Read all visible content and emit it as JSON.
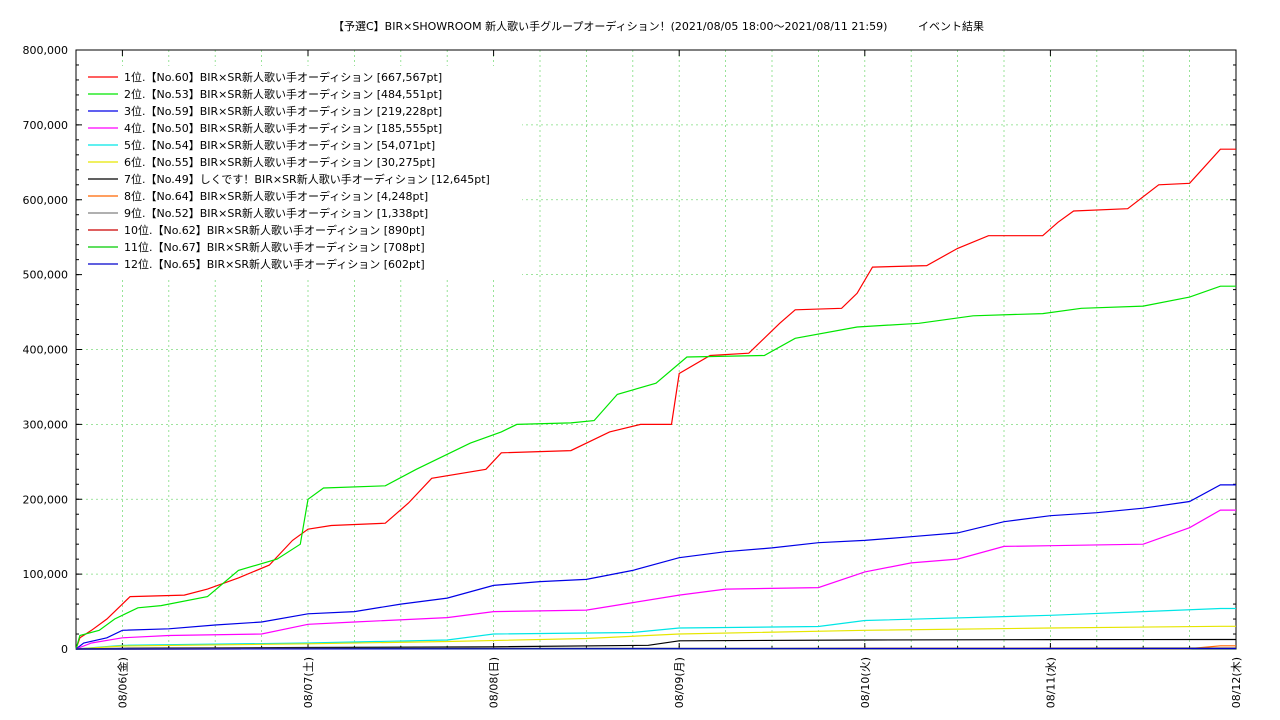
{
  "chart_data": {
    "type": "line",
    "title": "【予選C】BIR×SHOWROOM 新人歌い手グループオーディション！(2021/08/05 18:00〜2021/08/11 21:59)",
    "subtitle": "イベント結果",
    "xlabel": "",
    "ylabel": "",
    "ylim": [
      0,
      800000
    ],
    "xlim": [
      "2021-08-05 18:00",
      "2021-08-12 00:00"
    ],
    "y_ticks": [
      "0",
      "100,000",
      "200,000",
      "300,000",
      "400,000",
      "500,000",
      "600,000",
      "700,000",
      "800,000"
    ],
    "y_tick_values": [
      0,
      100000,
      200000,
      300000,
      400000,
      500000,
      600000,
      700000,
      800000
    ],
    "x_ticks": [
      "08/06(金)",
      "08/07(土)",
      "08/08(日)",
      "08/09(月)",
      "08/10(火)",
      "08/11(水)",
      "08/12(木)"
    ],
    "x_tick_values": [
      "2021-08-06 00:00",
      "2021-08-07 00:00",
      "2021-08-08 00:00",
      "2021-08-09 00:00",
      "2021-08-10 00:00",
      "2021-08-11 00:00",
      "2021-08-12 00:00"
    ],
    "grid": true,
    "legend_position": "top-left",
    "series": [
      {
        "name": "1位.【No.60】BIR×SR新人歌い手オーディション [667,567pt]",
        "color": "#ff0000",
        "points": [
          [
            "2021-08-05 18:00",
            0
          ],
          [
            "2021-08-05 18:30",
            15000
          ],
          [
            "2021-08-05 20:00",
            25000
          ],
          [
            "2021-08-05 22:00",
            40000
          ],
          [
            "2021-08-06 00:00",
            60000
          ],
          [
            "2021-08-06 01:00",
            70000
          ],
          [
            "2021-08-06 08:00",
            72000
          ],
          [
            "2021-08-06 11:00",
            80000
          ],
          [
            "2021-08-06 15:00",
            95000
          ],
          [
            "2021-08-06 19:00",
            112000
          ],
          [
            "2021-08-06 22:00",
            145000
          ],
          [
            "2021-08-07 00:00",
            160000
          ],
          [
            "2021-08-07 03:00",
            165000
          ],
          [
            "2021-08-07 10:00",
            168000
          ],
          [
            "2021-08-07 13:00",
            195000
          ],
          [
            "2021-08-07 16:00",
            228000
          ],
          [
            "2021-08-07 23:00",
            240000
          ],
          [
            "2021-08-08 01:00",
            262000
          ],
          [
            "2021-08-08 10:00",
            265000
          ],
          [
            "2021-08-08 15:00",
            290000
          ],
          [
            "2021-08-08 19:00",
            300000
          ],
          [
            "2021-08-08 23:00",
            300000
          ],
          [
            "2021-08-09 00:00",
            368000
          ],
          [
            "2021-08-09 04:00",
            392000
          ],
          [
            "2021-08-09 09:00",
            395000
          ],
          [
            "2021-08-09 13:00",
            435000
          ],
          [
            "2021-08-09 15:00",
            453000
          ],
          [
            "2021-08-09 21:00",
            455000
          ],
          [
            "2021-08-09 23:00",
            475000
          ],
          [
            "2021-08-10 01:00",
            510000
          ],
          [
            "2021-08-10 08:00",
            512000
          ],
          [
            "2021-08-10 12:00",
            535000
          ],
          [
            "2021-08-10 16:00",
            552000
          ],
          [
            "2021-08-10 23:00",
            552000
          ],
          [
            "2021-08-11 01:00",
            570000
          ],
          [
            "2021-08-11 03:00",
            585000
          ],
          [
            "2021-08-11 10:00",
            588000
          ],
          [
            "2021-08-11 14:00",
            620000
          ],
          [
            "2021-08-11 18:00",
            622000
          ],
          [
            "2021-08-11 21:59",
            667567
          ],
          [
            "2021-08-12 00:00",
            667567
          ]
        ]
      },
      {
        "name": "2位.【No.53】BIR×SR新人歌い手オーディション [484,551pt]",
        "color": "#00e600",
        "points": [
          [
            "2021-08-05 18:00",
            0
          ],
          [
            "2021-08-05 18:30",
            18000
          ],
          [
            "2021-08-05 21:00",
            25000
          ],
          [
            "2021-08-05 23:00",
            40000
          ],
          [
            "2021-08-06 02:00",
            55000
          ],
          [
            "2021-08-06 05:00",
            58000
          ],
          [
            "2021-08-06 11:00",
            70000
          ],
          [
            "2021-08-06 15:00",
            105000
          ],
          [
            "2021-08-06 20:00",
            120000
          ],
          [
            "2021-08-06 23:00",
            140000
          ],
          [
            "2021-08-07 00:00",
            200000
          ],
          [
            "2021-08-07 02:00",
            215000
          ],
          [
            "2021-08-07 10:00",
            218000
          ],
          [
            "2021-08-07 14:00",
            240000
          ],
          [
            "2021-08-07 18:00",
            260000
          ],
          [
            "2021-08-07 21:00",
            275000
          ],
          [
            "2021-08-08 01:00",
            290000
          ],
          [
            "2021-08-08 03:00",
            300000
          ],
          [
            "2021-08-08 10:00",
            302000
          ],
          [
            "2021-08-08 13:00",
            305000
          ],
          [
            "2021-08-08 16:00",
            340000
          ],
          [
            "2021-08-08 21:00",
            355000
          ],
          [
            "2021-08-09 01:00",
            390000
          ],
          [
            "2021-08-09 11:00",
            392000
          ],
          [
            "2021-08-09 15:00",
            415000
          ],
          [
            "2021-08-09 23:00",
            430000
          ],
          [
            "2021-08-10 07:00",
            435000
          ],
          [
            "2021-08-10 14:00",
            445000
          ],
          [
            "2021-08-10 23:00",
            448000
          ],
          [
            "2021-08-11 04:00",
            455000
          ],
          [
            "2021-08-11 12:00",
            458000
          ],
          [
            "2021-08-11 18:00",
            470000
          ],
          [
            "2021-08-11 21:59",
            484551
          ],
          [
            "2021-08-12 00:00",
            484551
          ]
        ]
      },
      {
        "name": "3位.【No.59】BIR×SR新人歌い手オーディション [219,228pt]",
        "color": "#0000e6",
        "points": [
          [
            "2021-08-05 18:00",
            0
          ],
          [
            "2021-08-05 19:00",
            8000
          ],
          [
            "2021-08-05 22:00",
            15000
          ],
          [
            "2021-08-06 00:00",
            25000
          ],
          [
            "2021-08-06 06:00",
            27000
          ],
          [
            "2021-08-06 12:00",
            32000
          ],
          [
            "2021-08-06 18:00",
            36000
          ],
          [
            "2021-08-07 00:00",
            47000
          ],
          [
            "2021-08-07 06:00",
            50000
          ],
          [
            "2021-08-07 12:00",
            60000
          ],
          [
            "2021-08-07 18:00",
            68000
          ],
          [
            "2021-08-08 00:00",
            85000
          ],
          [
            "2021-08-08 06:00",
            90000
          ],
          [
            "2021-08-08 12:00",
            93000
          ],
          [
            "2021-08-08 18:00",
            105000
          ],
          [
            "2021-08-09 00:00",
            122000
          ],
          [
            "2021-08-09 06:00",
            130000
          ],
          [
            "2021-08-09 12:00",
            135000
          ],
          [
            "2021-08-09 18:00",
            142000
          ],
          [
            "2021-08-10 00:00",
            145000
          ],
          [
            "2021-08-10 06:00",
            150000
          ],
          [
            "2021-08-10 12:00",
            155000
          ],
          [
            "2021-08-10 18:00",
            170000
          ],
          [
            "2021-08-11 00:00",
            178000
          ],
          [
            "2021-08-11 06:00",
            182000
          ],
          [
            "2021-08-11 12:00",
            188000
          ],
          [
            "2021-08-11 18:00",
            197000
          ],
          [
            "2021-08-11 21:59",
            219228
          ],
          [
            "2021-08-12 00:00",
            219228
          ]
        ]
      },
      {
        "name": "4位.【No.50】BIR×SR新人歌い手オーディション [185,555pt]",
        "color": "#ff00ff",
        "points": [
          [
            "2021-08-05 18:00",
            0
          ],
          [
            "2021-08-05 20:00",
            8000
          ],
          [
            "2021-08-06 00:00",
            15000
          ],
          [
            "2021-08-06 06:00",
            18000
          ],
          [
            "2021-08-06 18:00",
            20000
          ],
          [
            "2021-08-07 00:00",
            33000
          ],
          [
            "2021-08-07 06:00",
            36000
          ],
          [
            "2021-08-07 18:00",
            42000
          ],
          [
            "2021-08-08 00:00",
            50000
          ],
          [
            "2021-08-08 12:00",
            52000
          ],
          [
            "2021-08-08 18:00",
            62000
          ],
          [
            "2021-08-09 00:00",
            72000
          ],
          [
            "2021-08-09 06:00",
            80000
          ],
          [
            "2021-08-09 18:00",
            82000
          ],
          [
            "2021-08-10 00:00",
            103000
          ],
          [
            "2021-08-10 06:00",
            115000
          ],
          [
            "2021-08-10 12:00",
            120000
          ],
          [
            "2021-08-10 18:00",
            137000
          ],
          [
            "2021-08-11 00:00",
            138000
          ],
          [
            "2021-08-11 12:00",
            140000
          ],
          [
            "2021-08-11 18:00",
            162000
          ],
          [
            "2021-08-11 21:59",
            185555
          ],
          [
            "2021-08-12 00:00",
            185555
          ]
        ]
      },
      {
        "name": "5位.【No.54】BIR×SR新人歌い手オーディション [54,071pt]",
        "color": "#00e6e6",
        "points": [
          [
            "2021-08-05 18:00",
            0
          ],
          [
            "2021-08-06 00:00",
            5000
          ],
          [
            "2021-08-07 00:00",
            8000
          ],
          [
            "2021-08-07 18:00",
            12000
          ],
          [
            "2021-08-08 00:00",
            20000
          ],
          [
            "2021-08-08 18:00",
            22000
          ],
          [
            "2021-08-09 00:00",
            28000
          ],
          [
            "2021-08-09 18:00",
            30000
          ],
          [
            "2021-08-10 00:00",
            38000
          ],
          [
            "2021-08-11 00:00",
            45000
          ],
          [
            "2021-08-11 12:00",
            50000
          ],
          [
            "2021-08-11 21:59",
            54071
          ],
          [
            "2021-08-12 00:00",
            54071
          ]
        ]
      },
      {
        "name": "6位.【No.55】BIR×SR新人歌い手オーディション [30,275pt]",
        "color": "#e6e600",
        "points": [
          [
            "2021-08-05 18:00",
            0
          ],
          [
            "2021-08-06 00:00",
            4000
          ],
          [
            "2021-08-07 00:00",
            7000
          ],
          [
            "2021-08-07 18:00",
            10000
          ],
          [
            "2021-08-08 12:00",
            14000
          ],
          [
            "2021-08-09 00:00",
            20000
          ],
          [
            "2021-08-10 00:00",
            25000
          ],
          [
            "2021-08-11 00:00",
            28000
          ],
          [
            "2021-08-11 21:59",
            30275
          ],
          [
            "2021-08-12 00:00",
            30275
          ]
        ]
      },
      {
        "name": "7位.【No.49】しくです！BIR×SR新人歌い手オーディション [12,645pt]",
        "color": "#000000",
        "points": [
          [
            "2021-08-05 18:00",
            0
          ],
          [
            "2021-08-06 00:00",
            1000
          ],
          [
            "2021-08-07 00:00",
            2000
          ],
          [
            "2021-08-08 00:00",
            3000
          ],
          [
            "2021-08-08 20:00",
            5000
          ],
          [
            "2021-08-09 00:00",
            11000
          ],
          [
            "2021-08-10 00:00",
            12000
          ],
          [
            "2021-08-11 00:00",
            12500
          ],
          [
            "2021-08-11 21:59",
            12645
          ],
          [
            "2021-08-12 00:00",
            12645
          ]
        ]
      },
      {
        "name": "8位.【No.64】BIR×SR新人歌い手オーディション [4,248pt]",
        "color": "#ff6600",
        "points": [
          [
            "2021-08-05 18:00",
            0
          ],
          [
            "2021-08-11 18:00",
            500
          ],
          [
            "2021-08-11 21:59",
            4248
          ],
          [
            "2021-08-12 00:00",
            4248
          ]
        ]
      },
      {
        "name": "9位.【No.52】BIR×SR新人歌い手オーディション [1,338pt]",
        "color": "#808080",
        "points": [
          [
            "2021-08-05 18:00",
            0
          ],
          [
            "2021-08-06 12:00",
            800
          ],
          [
            "2021-08-11 21:59",
            1338
          ],
          [
            "2021-08-12 00:00",
            1338
          ]
        ]
      },
      {
        "name": "10位.【No.62】BIR×SR新人歌い手オーディション [890pt]",
        "color": "#cc0000",
        "points": [
          [
            "2021-08-05 18:00",
            0
          ],
          [
            "2021-08-11 21:59",
            890
          ],
          [
            "2021-08-12 00:00",
            890
          ]
        ]
      },
      {
        "name": "11位.【No.67】BIR×SR新人歌い手オーディション [708pt]",
        "color": "#00cc00",
        "points": [
          [
            "2021-08-05 18:00",
            0
          ],
          [
            "2021-08-11 21:59",
            708
          ],
          [
            "2021-08-12 00:00",
            708
          ]
        ]
      },
      {
        "name": "12位.【No.65】BIR×SR新人歌い手オーディション [602pt]",
        "color": "#0000cc",
        "points": [
          [
            "2021-08-05 18:00",
            0
          ],
          [
            "2021-08-11 21:59",
            602
          ],
          [
            "2021-08-12 00:00",
            602
          ]
        ]
      }
    ]
  }
}
